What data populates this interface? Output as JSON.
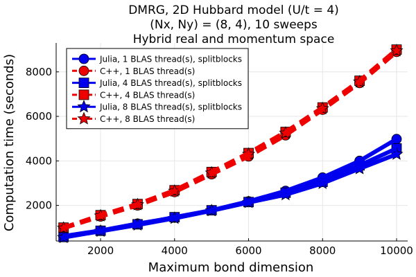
{
  "chart_data": {
    "type": "line",
    "title_lines": [
      "DMRG, 2D Hubbard model (U/t = 4)",
      "(Nx, Ny) = (8, 4), 10 sweeps",
      "Hybrid real and momentum space"
    ],
    "xlabel": "Maximum bond dimension",
    "ylabel": "Computation time (seconds)",
    "xlim": [
      800,
      10300
    ],
    "ylim": [
      400,
      9300
    ],
    "xticks": [
      2000,
      4000,
      6000,
      8000,
      10000
    ],
    "yticks": [
      2000,
      4000,
      6000,
      8000
    ],
    "grid": true,
    "legend_position": "top-left",
    "x": [
      1000,
      2000,
      3000,
      4000,
      5000,
      6000,
      7000,
      8000,
      9000,
      10000
    ],
    "series": [
      {
        "name": "Julia, 1 BLAS thread(s), splitblocks",
        "color": "#0000ee",
        "line": "solid",
        "marker": "circle",
        "values": [
          620,
          870,
          1180,
          1450,
          1780,
          2180,
          2650,
          3250,
          4000,
          4980
        ]
      },
      {
        "name": "C++, 1 BLAS thread(s)",
        "color": "#ee0000",
        "line": "dashed",
        "marker": "circle",
        "values": [
          980,
          1500,
          2000,
          2600,
          3400,
          4200,
          5150,
          6300,
          7500,
          8900
        ]
      },
      {
        "name": "Julia, 4 BLAS thread(s), splitblocks",
        "color": "#0000ee",
        "line": "solid",
        "marker": "square",
        "values": [
          580,
          860,
          1150,
          1470,
          1780,
          2150,
          2570,
          3060,
          3800,
          4560
        ]
      },
      {
        "name": "C++, 4 BLAS thread(s)",
        "color": "#ee0000",
        "line": "dashed",
        "marker": "square",
        "values": [
          1000,
          1560,
          2060,
          2680,
          3500,
          4350,
          5300,
          6400,
          7600,
          9000
        ]
      },
      {
        "name": "Julia, 8 BLAS thread(s), splitblocks",
        "color": "#0000ee",
        "line": "solid",
        "marker": "star",
        "values": [
          560,
          840,
          1120,
          1420,
          1760,
          2130,
          2480,
          2990,
          3650,
          4300
        ]
      },
      {
        "name": "C++, 8 BLAS thread(s)",
        "color": "#ee0000",
        "line": "dashed",
        "marker": "star",
        "values": [
          980,
          1530,
          2030,
          2640,
          3460,
          4300,
          5250,
          6350,
          7550,
          8950
        ]
      }
    ]
  }
}
